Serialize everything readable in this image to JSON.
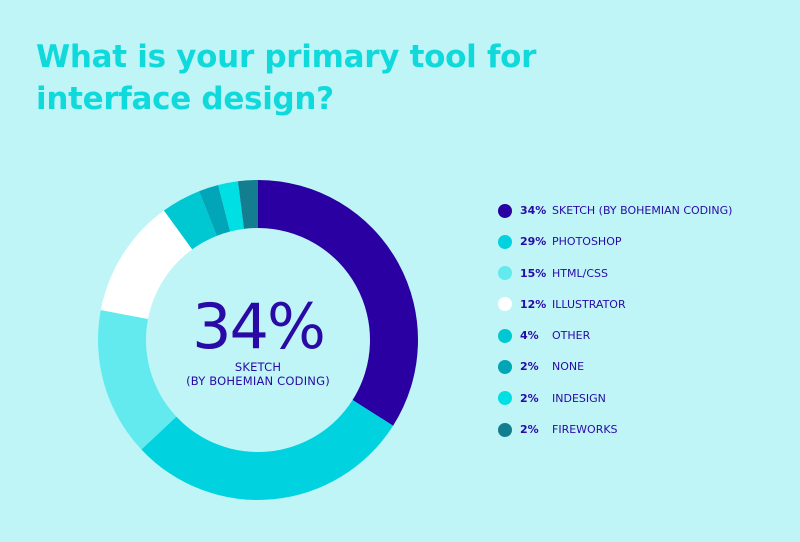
{
  "chart_data": {
    "type": "donut",
    "title": "What is your primary tool for interface design?",
    "center_value": "34%",
    "center_label_line1": "SKETCH",
    "center_label_line2": "(BY BOHEMIAN CODING)",
    "categories": [
      "SKETCH (BY BOHEMIAN CODING)",
      "PHOTOSHOP",
      "HTML/CSS",
      "ILLUSTRATOR",
      "OTHER",
      "NONE",
      "INDESIGN",
      "FIREWORKS"
    ],
    "values": [
      34,
      29,
      15,
      12,
      4,
      2,
      2,
      2
    ],
    "labels": [
      "34%",
      "29%",
      "15%",
      "12%",
      "4%",
      "2%",
      "2%",
      "2%"
    ],
    "colors": [
      "#2a00a3",
      "#00d3df",
      "#62eaef",
      "#ffffff",
      "#00c8d3",
      "#00a6b7",
      "#00e0e4",
      "#127e8f"
    ],
    "legend_position": "right"
  }
}
